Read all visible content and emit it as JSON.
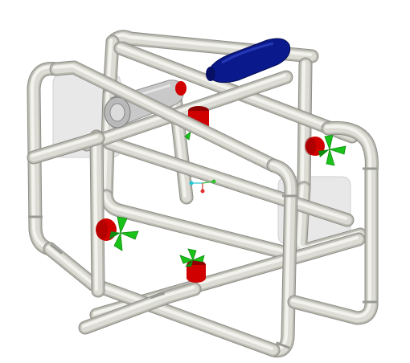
{
  "scene": {
    "background": "#ffffff",
    "colors": {
      "pipe": "#dcdcd5",
      "pipe_shadow": "#b9b9b0",
      "pipe_highlight": "#f3f3ee",
      "joint_band": "#9a9a94",
      "tank": "#e4e4e4",
      "tank_edge": "#cfcfcf",
      "motor": "#d00000",
      "motor_dark": "#8c0000",
      "propeller": "#19c219",
      "propeller_dark": "#0e8a0e",
      "bottle_silver": "#c7c7c7",
      "battery_blue": "#0a1a8c",
      "triad_x": "#e03030",
      "triad_y": "#30c030",
      "triad_z": "#20c8d8"
    },
    "parts": [
      {
        "name": "pvc-frame",
        "icon": "frame-icon"
      },
      {
        "name": "buoyancy-tank-left",
        "icon": "tank-icon"
      },
      {
        "name": "buoyancy-tank-right",
        "icon": "tank-icon"
      },
      {
        "name": "camera-housing",
        "icon": "cylinder-icon"
      },
      {
        "name": "battery-pack",
        "icon": "cylinder-icon"
      },
      {
        "name": "thruster-front-left",
        "icon": "propeller-icon"
      },
      {
        "name": "thruster-front-bottom",
        "icon": "propeller-icon"
      },
      {
        "name": "thruster-rear-right",
        "icon": "propeller-icon"
      },
      {
        "name": "thruster-rear-top",
        "icon": "propeller-icon"
      }
    ]
  }
}
